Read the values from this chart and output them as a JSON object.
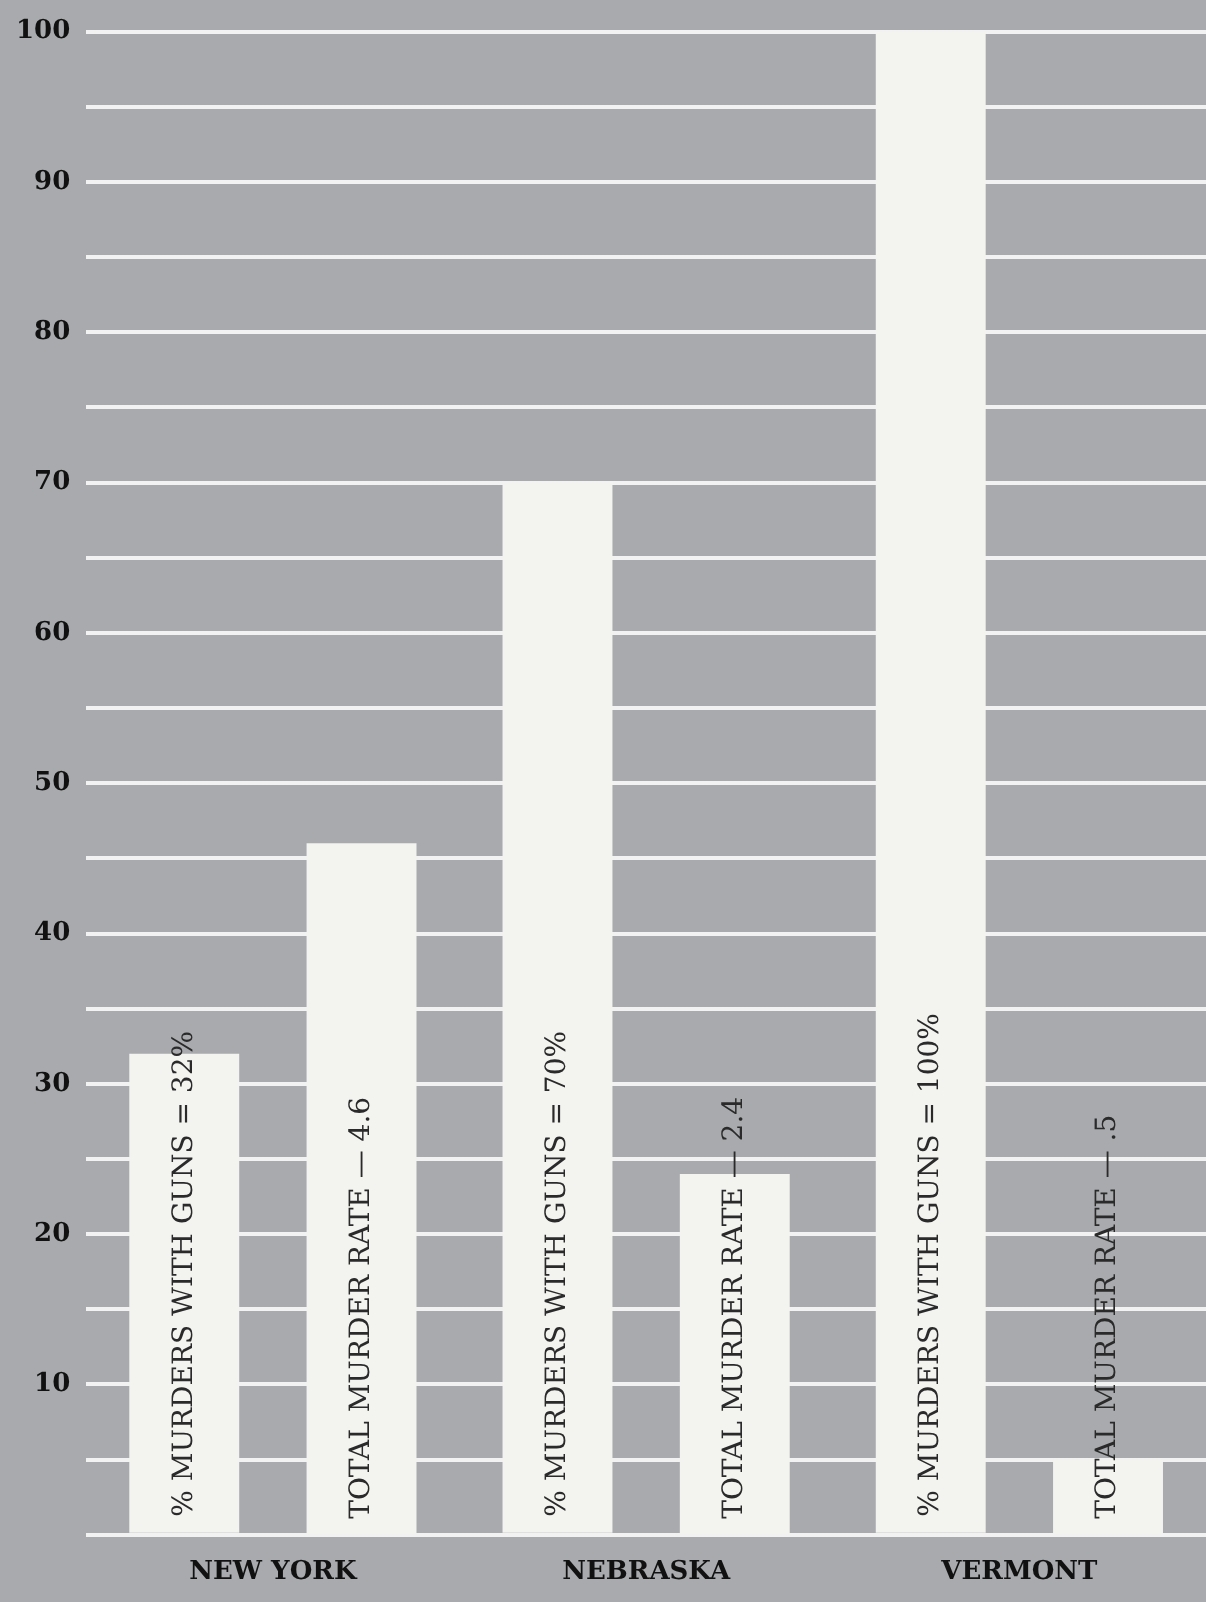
{
  "chart_data": {
    "type": "bar",
    "categories": [
      "NEW YORK",
      "NEBRASKA",
      "VERMONT"
    ],
    "series": [
      {
        "color": "#f3f3f0",
        "values": [
          32,
          70,
          100
        ],
        "value_labels": [
          "% MURDERS WITH GUNS = 32%",
          "% MURDERS WITH GUNS = 70%",
          "% MURDERS WITH GUNS = 100%"
        ]
      },
      {
        "color": "#f3f3f0",
        "axis": "y2",
        "values": [
          4.6,
          2.4,
          0.5
        ],
        "value_labels": [
          "TOTAL MURDER RATE — 4.6",
          "TOTAL MURDER RATE — 2.4",
          "TOTAL MURDER RATE — .5"
        ]
      }
    ],
    "ylim": [
      0,
      100
    ],
    "y2lim": [
      0,
      10
    ],
    "yticks": [
      {
        "value": 0,
        "label": null
      },
      {
        "value": 5,
        "label": null
      },
      10,
      {
        "value": 15,
        "label": null
      },
      20,
      {
        "value": 25,
        "label": null
      },
      30,
      {
        "value": 35,
        "label": null
      },
      40,
      {
        "value": 45,
        "label": null
      },
      50,
      {
        "value": 55,
        "label": null
      },
      60,
      {
        "value": 65,
        "label": null
      },
      70,
      {
        "value": 75,
        "label": null
      },
      80,
      {
        "value": 85,
        "label": null
      },
      90,
      {
        "value": 95,
        "label": null
      },
      100
    ],
    "grid": "y",
    "legend": false
  }
}
